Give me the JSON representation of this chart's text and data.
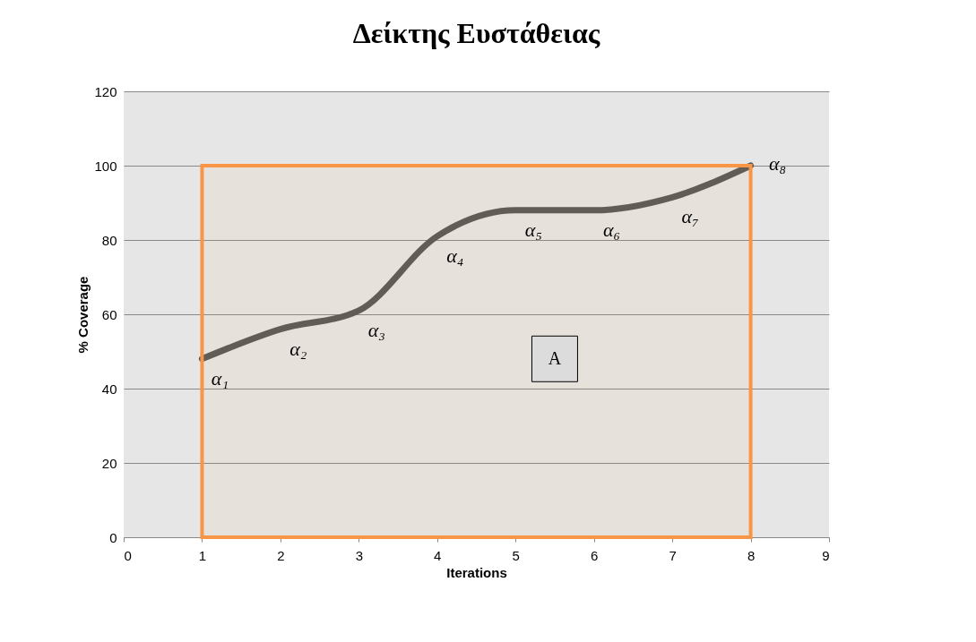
{
  "chart_data": {
    "type": "line",
    "title": "Δείκτης Ευστάθειας",
    "xlabel": "Iterations",
    "ylabel": "% Coverage",
    "x": [
      1,
      2,
      3,
      4,
      5,
      6,
      7,
      8
    ],
    "series": [
      {
        "color": "#595959",
        "values": [
          48,
          56,
          61,
          81,
          88,
          88,
          91.5,
          100
        ]
      }
    ],
    "xlim": [
      0,
      9
    ],
    "xticks": [
      0,
      1,
      2,
      3,
      4,
      5,
      6,
      7,
      8,
      9
    ],
    "ylim": [
      0,
      120
    ],
    "yticks": [
      0,
      20,
      40,
      60,
      80,
      100,
      120
    ],
    "grid": "y",
    "marker": "none",
    "line_style": "solid",
    "bands": [
      {
        "axis": "x",
        "from": 1,
        "to": 8,
        "label": "A",
        "color": "#f79646"
      }
    ],
    "annotations": [
      {
        "text": "α₁",
        "x": 1,
        "y": 48
      },
      {
        "text": "α₂",
        "x": 2,
        "y": 56
      },
      {
        "text": "α₃",
        "x": 3,
        "y": 61
      },
      {
        "text": "α₄",
        "x": 4,
        "y": 81
      },
      {
        "text": "α₅",
        "x": 5,
        "y": 88
      },
      {
        "text": "α₆",
        "x": 6,
        "y": 88
      },
      {
        "text": "α₇",
        "x": 7,
        "y": 91.5
      },
      {
        "text": "α₈",
        "x": 8,
        "y": 100
      }
    ]
  }
}
